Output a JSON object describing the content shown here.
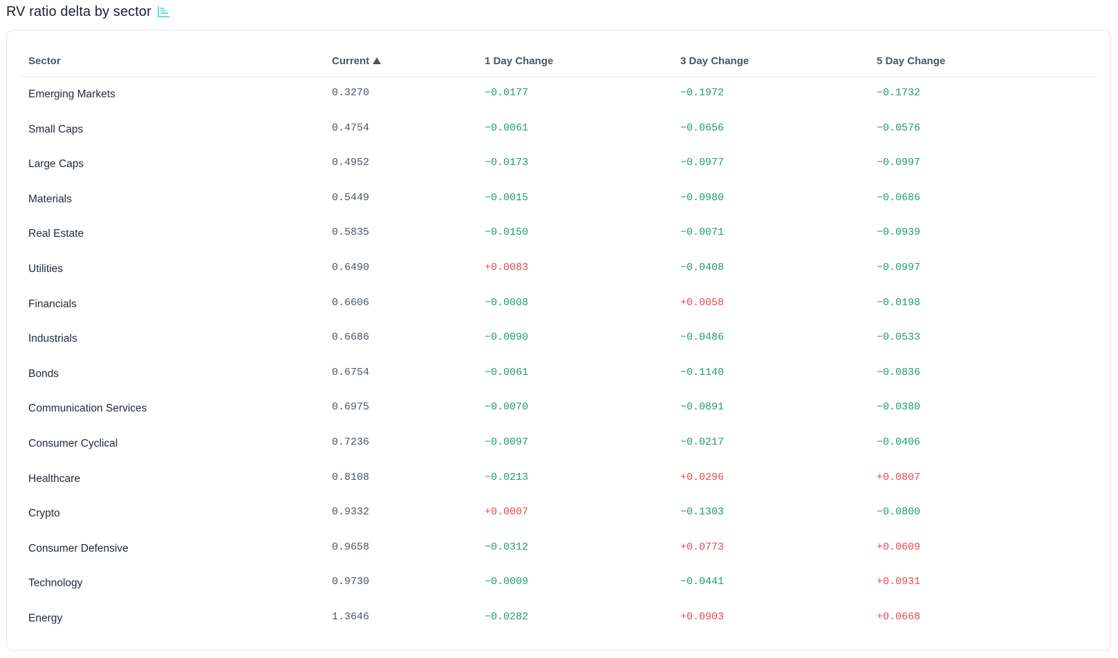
{
  "page": {
    "title": "RV ratio delta by sector"
  },
  "colors": {
    "negative": "#1f9d6b",
    "positive": "#e5484d",
    "icon": "#5ee0d8"
  },
  "table": {
    "headers": {
      "sector": "Sector",
      "current": "Current",
      "day1": "1 Day Change",
      "day3": "3 Day Change",
      "day5": "5 Day Change"
    },
    "sort": {
      "column": "current",
      "direction": "ascending"
    },
    "rows": [
      {
        "sector": "Emerging Markets",
        "current": "0.3270",
        "day1": "-0.0177",
        "day3": "-0.1972",
        "day5": "-0.1732"
      },
      {
        "sector": "Small Caps",
        "current": "0.4754",
        "day1": "-0.0061",
        "day3": "-0.0656",
        "day5": "-0.0576"
      },
      {
        "sector": "Large Caps",
        "current": "0.4952",
        "day1": "-0.0173",
        "day3": "-0.0977",
        "day5": "-0.0997"
      },
      {
        "sector": "Materials",
        "current": "0.5449",
        "day1": "-0.0015",
        "day3": "-0.0980",
        "day5": "-0.0686"
      },
      {
        "sector": "Real Estate",
        "current": "0.5835",
        "day1": "-0.0150",
        "day3": "-0.0071",
        "day5": "-0.0939"
      },
      {
        "sector": "Utilities",
        "current": "0.6490",
        "day1": "+0.0083",
        "day3": "-0.0408",
        "day5": "-0.0997"
      },
      {
        "sector": "Financials",
        "current": "0.6606",
        "day1": "-0.0008",
        "day3": "+0.0058",
        "day5": "-0.0198"
      },
      {
        "sector": "Industrials",
        "current": "0.6686",
        "day1": "-0.0090",
        "day3": "-0.0486",
        "day5": "-0.0533"
      },
      {
        "sector": "Bonds",
        "current": "0.6754",
        "day1": "-0.0061",
        "day3": "-0.1140",
        "day5": "-0.0836"
      },
      {
        "sector": "Communication Services",
        "current": "0.6975",
        "day1": "-0.0070",
        "day3": "-0.0891",
        "day5": "-0.0380"
      },
      {
        "sector": "Consumer Cyclical",
        "current": "0.7236",
        "day1": "-0.0097",
        "day3": "-0.0217",
        "day5": "-0.0406"
      },
      {
        "sector": "Healthcare",
        "current": "0.8108",
        "day1": "-0.0213",
        "day3": "+0.0296",
        "day5": "+0.0807"
      },
      {
        "sector": "Crypto",
        "current": "0.9332",
        "day1": "+0.0007",
        "day3": "-0.1303",
        "day5": "-0.0800"
      },
      {
        "sector": "Consumer Defensive",
        "current": "0.9658",
        "day1": "-0.0312",
        "day3": "+0.0773",
        "day5": "+0.0609"
      },
      {
        "sector": "Technology",
        "current": "0.9730",
        "day1": "-0.0009",
        "day3": "-0.0441",
        "day5": "+0.0931"
      },
      {
        "sector": "Energy",
        "current": "1.3646",
        "day1": "-0.0282",
        "day3": "+0.0903",
        "day5": "+0.0668"
      }
    ]
  }
}
